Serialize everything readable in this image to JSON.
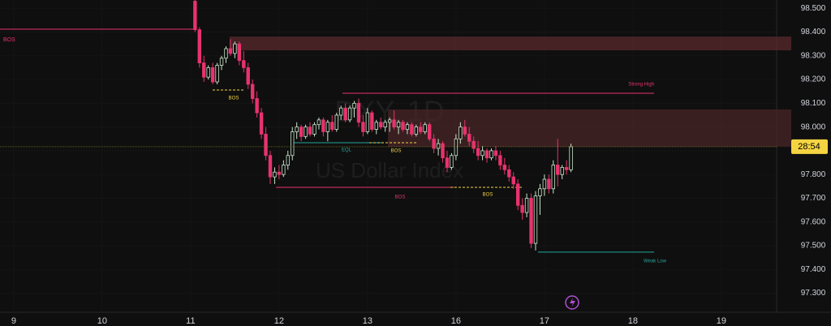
{
  "chart_data": {
    "type": "candlestick",
    "watermark": {
      "symbol": "DXY, 1D",
      "name": "US Dollar Index"
    },
    "up_color": "#c8e6c9",
    "down_color": "#e8326e",
    "ylim": [
      97.22,
      98.535
    ],
    "yticks": [
      {
        "value": 98.5,
        "label": "98.500"
      },
      {
        "value": 98.4,
        "label": "98.400"
      },
      {
        "value": 98.3,
        "label": "98.300"
      },
      {
        "value": 98.2,
        "label": "98.200"
      },
      {
        "value": 98.1,
        "label": "98.100"
      },
      {
        "value": 98.0,
        "label": "98.000"
      },
      {
        "value": 97.9,
        "label": "97.900"
      },
      {
        "value": 97.8,
        "label": "97.800"
      },
      {
        "value": 97.7,
        "label": "97.700"
      },
      {
        "value": 97.6,
        "label": "97.600"
      },
      {
        "value": 97.5,
        "label": "97.500"
      },
      {
        "value": 97.4,
        "label": "97.400"
      },
      {
        "value": 97.3,
        "label": "97.300"
      }
    ],
    "xlim": [
      -3.1,
      172.5
    ],
    "xticks": [
      {
        "value": 0,
        "label": "9"
      },
      {
        "value": 20,
        "label": "10"
      },
      {
        "value": 40,
        "label": "11"
      },
      {
        "value": 60,
        "label": "12"
      },
      {
        "value": 80,
        "label": "13"
      },
      {
        "value": 100,
        "label": "16"
      },
      {
        "value": 120,
        "label": "17"
      },
      {
        "value": 140,
        "label": "18"
      },
      {
        "value": 160,
        "label": "19"
      }
    ],
    "last_price": 97.917,
    "countdown": "28:54",
    "x": [
      41,
      42,
      43,
      44,
      45,
      46,
      47,
      48,
      49,
      50,
      51,
      52,
      53,
      54,
      55,
      56,
      57,
      58,
      59,
      60,
      61,
      62,
      63,
      64,
      65,
      66,
      67,
      68,
      69,
      70,
      71,
      72,
      73,
      74,
      75,
      76,
      77,
      78,
      79,
      80,
      81,
      82,
      83,
      84,
      85,
      86,
      87,
      88,
      89,
      90,
      91,
      92,
      93,
      94,
      95,
      96,
      97,
      98,
      99,
      100,
      101,
      102,
      103,
      104,
      105,
      106,
      107,
      108,
      109,
      110,
      111,
      112,
      113,
      114,
      115,
      116,
      117,
      118,
      119,
      120,
      121,
      122,
      123,
      124,
      125,
      126
    ],
    "ohlc": [
      [
        98.53,
        98.535,
        98.4,
        98.41
      ],
      [
        98.41,
        98.42,
        98.25,
        98.27
      ],
      [
        98.27,
        98.3,
        98.19,
        98.21
      ],
      [
        98.21,
        98.26,
        98.2,
        98.25
      ],
      [
        98.25,
        98.27,
        98.18,
        98.19
      ],
      [
        98.19,
        98.27,
        98.18,
        98.26
      ],
      [
        98.26,
        98.3,
        98.24,
        98.29
      ],
      [
        98.29,
        98.34,
        98.27,
        98.33
      ],
      [
        98.33,
        98.37,
        98.3,
        98.31
      ],
      [
        98.31,
        98.36,
        98.29,
        98.35
      ],
      [
        98.35,
        98.36,
        98.26,
        98.28
      ],
      [
        98.28,
        98.32,
        98.23,
        98.25
      ],
      [
        98.25,
        98.27,
        98.16,
        98.18
      ],
      [
        98.18,
        98.2,
        98.1,
        98.12
      ],
      [
        98.12,
        98.15,
        98.04,
        98.06
      ],
      [
        98.06,
        98.08,
        97.95,
        97.97
      ],
      [
        97.97,
        98.0,
        97.86,
        97.88
      ],
      [
        97.88,
        97.9,
        97.76,
        97.79
      ],
      [
        97.79,
        97.83,
        97.76,
        97.81
      ],
      [
        97.81,
        97.84,
        97.78,
        97.8
      ],
      [
        97.8,
        97.86,
        97.79,
        97.84
      ],
      [
        97.84,
        97.9,
        97.82,
        97.88
      ],
      [
        97.88,
        98.0,
        97.86,
        97.98
      ],
      [
        97.98,
        98.02,
        97.95,
        98.0
      ],
      [
        98.0,
        98.01,
        97.94,
        97.96
      ],
      [
        97.96,
        98.01,
        97.95,
        98.0
      ],
      [
        98.0,
        98.02,
        97.96,
        97.97
      ],
      [
        97.97,
        98.02,
        97.96,
        98.01
      ],
      [
        98.01,
        98.04,
        97.99,
        98.03
      ],
      [
        98.03,
        98.04,
        97.96,
        97.98
      ],
      [
        97.98,
        98.03,
        97.94,
        98.02
      ],
      [
        98.02,
        98.05,
        97.98,
        97.99
      ],
      [
        97.99,
        98.06,
        97.98,
        98.05
      ],
      [
        98.05,
        98.09,
        98.03,
        98.08
      ],
      [
        98.08,
        98.1,
        98.02,
        98.03
      ],
      [
        98.03,
        98.09,
        98.02,
        98.08
      ],
      [
        98.08,
        98.11,
        98.04,
        98.1
      ],
      [
        98.1,
        98.12,
        98.0,
        98.02
      ],
      [
        98.02,
        98.05,
        97.96,
        97.98
      ],
      [
        97.98,
        98.08,
        97.97,
        98.06
      ],
      [
        98.06,
        98.07,
        97.98,
        97.99
      ],
      [
        97.99,
        98.03,
        97.97,
        98.02
      ],
      [
        98.02,
        98.04,
        97.99,
        98.0
      ],
      [
        98.0,
        98.03,
        97.98,
        98.02
      ],
      [
        98.02,
        98.04,
        97.98,
        98.03
      ],
      [
        98.03,
        98.07,
        97.99,
        98.0
      ],
      [
        98.0,
        98.03,
        97.97,
        98.02
      ],
      [
        98.02,
        98.03,
        97.98,
        97.99
      ],
      [
        97.99,
        98.02,
        97.97,
        98.01
      ],
      [
        98.01,
        98.02,
        97.96,
        97.97
      ],
      [
        97.97,
        98.01,
        97.96,
        98.0
      ],
      [
        98.0,
        98.02,
        97.97,
        97.98
      ],
      [
        97.98,
        98.02,
        97.97,
        98.01
      ],
      [
        98.01,
        98.02,
        97.94,
        97.95
      ],
      [
        97.95,
        97.97,
        97.89,
        97.91
      ],
      [
        97.91,
        97.95,
        97.88,
        97.93
      ],
      [
        97.93,
        97.94,
        97.85,
        97.87
      ],
      [
        97.87,
        97.9,
        97.81,
        97.83
      ],
      [
        97.83,
        97.89,
        97.82,
        97.88
      ],
      [
        97.88,
        97.97,
        97.86,
        97.95
      ],
      [
        97.95,
        98.02,
        97.93,
        98.0
      ],
      [
        98.0,
        98.03,
        97.96,
        97.97
      ],
      [
        97.97,
        98.0,
        97.92,
        97.94
      ],
      [
        97.94,
        97.96,
        97.89,
        97.91
      ],
      [
        97.91,
        97.94,
        97.86,
        97.88
      ],
      [
        97.88,
        97.92,
        97.86,
        97.9
      ],
      [
        97.9,
        97.91,
        97.85,
        97.87
      ],
      [
        97.87,
        97.91,
        97.86,
        97.9
      ],
      [
        97.9,
        97.92,
        97.86,
        97.88
      ],
      [
        97.88,
        97.9,
        97.82,
        97.84
      ],
      [
        97.84,
        97.87,
        97.8,
        97.82
      ],
      [
        97.82,
        97.84,
        97.77,
        97.79
      ],
      [
        97.79,
        97.81,
        97.74,
        97.76
      ],
      [
        97.76,
        97.78,
        97.65,
        97.67
      ],
      [
        97.67,
        97.7,
        97.61,
        97.64
      ],
      [
        97.64,
        97.72,
        97.62,
        97.7
      ],
      [
        97.7,
        97.72,
        97.49,
        97.51
      ],
      [
        97.51,
        97.73,
        97.48,
        97.71
      ],
      [
        97.71,
        97.76,
        97.63,
        97.74
      ],
      [
        97.74,
        97.8,
        97.71,
        97.78
      ],
      [
        97.78,
        97.8,
        97.72,
        97.74
      ],
      [
        97.74,
        97.86,
        97.72,
        97.84
      ],
      [
        97.84,
        97.95,
        97.75,
        97.8
      ],
      [
        97.8,
        97.84,
        97.78,
        97.83
      ],
      [
        97.83,
        97.86,
        97.8,
        97.82
      ],
      [
        97.82,
        97.93,
        97.81,
        97.917
      ]
    ],
    "zones": [
      {
        "low": 98.323,
        "high": 98.381,
        "color": "#5a2a2e"
      },
      {
        "low": 97.917,
        "high": 98.074,
        "color": "#4a2628"
      }
    ],
    "levels": [
      {
        "text": "BOS",
        "value": 98.412,
        "color": "#e8326e"
      },
      {
        "text": "BOS",
        "value": 98.156,
        "color": "#f5d442"
      },
      {
        "text": "Strong High",
        "value": 98.142,
        "color": "#e8326e"
      },
      {
        "text": "EQL",
        "value": 97.934,
        "color": "#26a69a"
      },
      {
        "text": "BOS",
        "value": 97.934,
        "color": "#f5d442"
      },
      {
        "text": "BOS",
        "value": 97.746,
        "color": "#e8326e"
      },
      {
        "text": "BOS",
        "value": 97.746,
        "color": "#f5d442"
      },
      {
        "text": "Weak Low",
        "value": 97.473,
        "color": "#26a69a"
      }
    ]
  }
}
